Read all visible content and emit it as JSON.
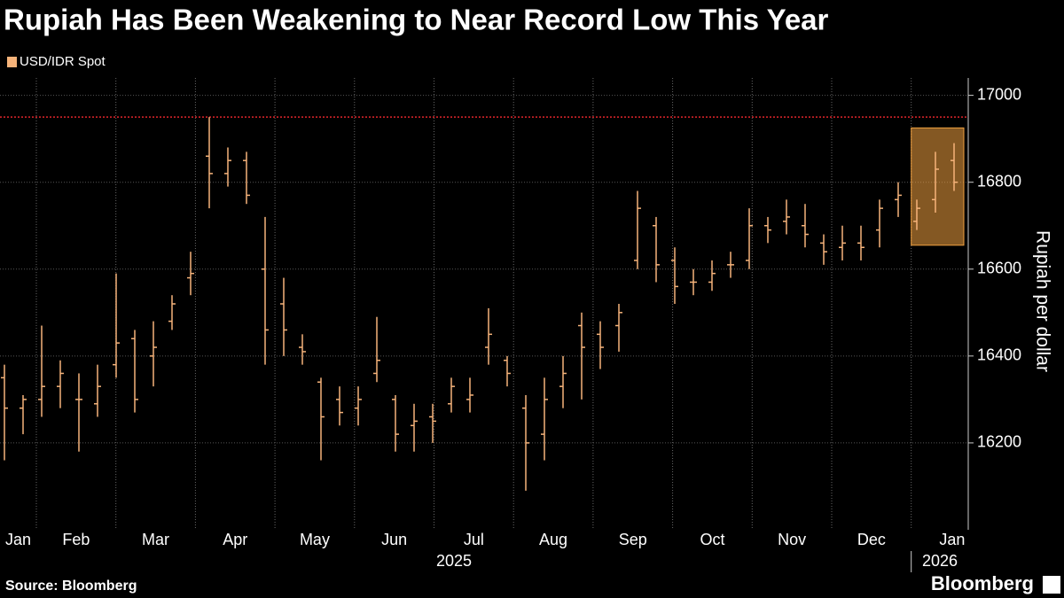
{
  "chart_data": {
    "type": "ohlc",
    "title": "Rupiah Has Been Weakening to Near Record Low This Year",
    "y_label": "Rupiah per dollar",
    "source": "Source: Bloomberg",
    "brand": "Bloomberg",
    "categories": [
      "Jan",
      "Feb",
      "Mar",
      "Apr",
      "May",
      "Jun",
      "Jul",
      "Aug",
      "Sep",
      "Oct",
      "Nov",
      "Dec",
      "Jan"
    ],
    "years": [
      "2025",
      "2026"
    ],
    "ylim": [
      16000,
      17040
    ],
    "yticks": [
      16200,
      16400,
      16600,
      16800,
      17000
    ],
    "grid": true,
    "reference_line": {
      "value": 16950,
      "color": "#e0252b"
    },
    "highlight": {
      "ylim": [
        16655,
        16925
      ],
      "color": "#f0a040"
    },
    "series": [
      {
        "name": "USD/IDR Spot",
        "color": "#f6b37a",
        "open": [
          16350,
          16280,
          16300,
          16330,
          16300,
          16290,
          16380,
          16440,
          16400,
          16480,
          16580,
          16860,
          16820,
          16850,
          16600,
          16520,
          16420,
          16340,
          16300,
          16280,
          16360,
          16300,
          16240,
          16260,
          16290,
          16300,
          16420,
          16390,
          16280,
          16220,
          16330,
          16470,
          16450,
          16470,
          16620,
          16700,
          16620,
          16570,
          16570,
          16610,
          16620,
          16700,
          16710,
          16700,
          16660,
          16650,
          16660,
          16690,
          16760,
          16710,
          16760,
          16850
        ],
        "high": [
          16380,
          16310,
          16470,
          16390,
          16360,
          16380,
          16590,
          16460,
          16480,
          16540,
          16640,
          16950,
          16880,
          16870,
          16720,
          16580,
          16450,
          16350,
          16330,
          16330,
          16490,
          16310,
          16290,
          16290,
          16350,
          16350,
          16510,
          16400,
          16310,
          16350,
          16400,
          16500,
          16480,
          16520,
          16780,
          16720,
          16650,
          16600,
          16620,
          16640,
          16740,
          16720,
          16760,
          16750,
          16680,
          16700,
          16700,
          16760,
          16800,
          16760,
          16870,
          16890
        ],
        "low": [
          16160,
          16220,
          16260,
          16280,
          16180,
          16260,
          16350,
          16270,
          16330,
          16460,
          16540,
          16740,
          16790,
          16750,
          16380,
          16400,
          16380,
          16160,
          16240,
          16240,
          16340,
          16180,
          16180,
          16200,
          16270,
          16270,
          16380,
          16330,
          16090,
          16160,
          16280,
          16300,
          16370,
          16410,
          16600,
          16570,
          16520,
          16540,
          16550,
          16580,
          16600,
          16660,
          16680,
          16650,
          16610,
          16620,
          16620,
          16650,
          16720,
          16690,
          16730,
          16780
        ],
        "close": [
          16280,
          16300,
          16330,
          16360,
          16300,
          16330,
          16430,
          16300,
          16420,
          16520,
          16590,
          16820,
          16850,
          16770,
          16460,
          16460,
          16410,
          16260,
          16270,
          16300,
          16390,
          16220,
          16250,
          16250,
          16330,
          16310,
          16450,
          16360,
          16200,
          16300,
          16360,
          16420,
          16420,
          16500,
          16740,
          16610,
          16560,
          16570,
          16590,
          16610,
          16700,
          16690,
          16720,
          16680,
          16640,
          16660,
          16650,
          16740,
          16770,
          16740,
          16830,
          16800
        ]
      }
    ]
  }
}
